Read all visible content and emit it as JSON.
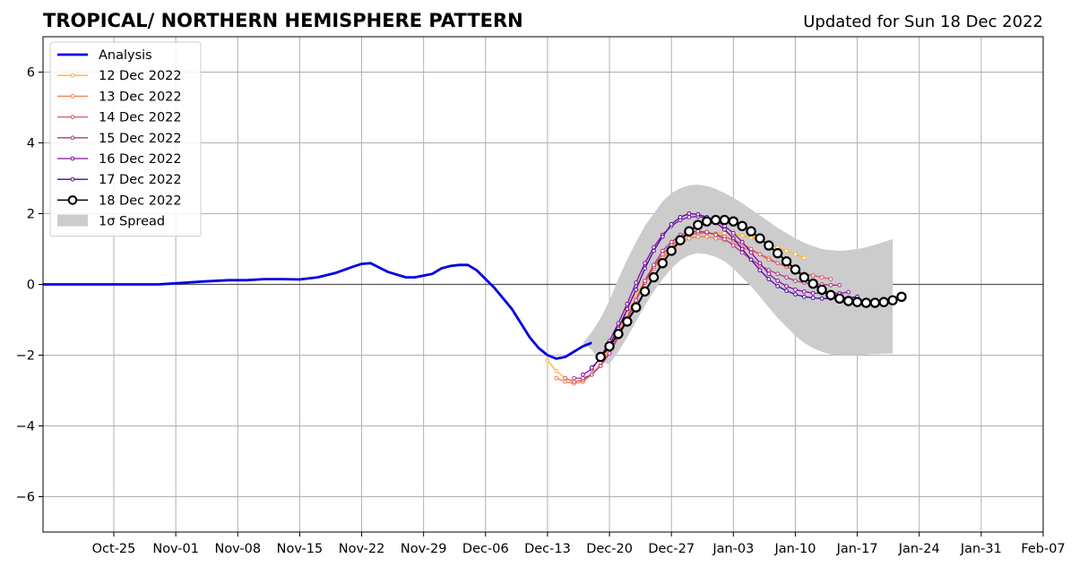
{
  "chart_data": {
    "type": "line",
    "title": "TROPICAL/ NORTHERN HEMISPHERE PATTERN",
    "subtitle": "Updated for Sun 18 Dec 2022",
    "xlabel": "",
    "ylabel": "",
    "x_range": [
      "2022-10-17",
      "2023-02-07"
    ],
    "ylim": [
      -7,
      7
    ],
    "y_ticks": [
      -6,
      -4,
      -2,
      0,
      2,
      4,
      6
    ],
    "y_tick_labels": [
      "−6",
      "−4",
      "−2",
      "0",
      "2",
      "4",
      "6"
    ],
    "x_ticks": [
      "2022-10-25",
      "2022-11-01",
      "2022-11-08",
      "2022-11-15",
      "2022-11-22",
      "2022-11-29",
      "2022-12-06",
      "2022-12-13",
      "2022-12-20",
      "2022-12-27",
      "2023-01-03",
      "2023-01-10",
      "2023-01-17",
      "2023-01-24",
      "2023-01-31",
      "2023-02-07"
    ],
    "x_tick_labels": [
      "Oct-25",
      "Nov-01",
      "Nov-08",
      "Nov-15",
      "Nov-22",
      "Nov-29",
      "Dec-06",
      "Dec-13",
      "Dec-20",
      "Dec-27",
      "Jan-03",
      "Jan-10",
      "Jan-17",
      "Jan-24",
      "Jan-31",
      "Feb-07"
    ],
    "grid": true,
    "zero_line": true,
    "legend_position": "top-left",
    "analysis": {
      "name": "Analysis",
      "color": "#0000e0",
      "dates": [
        "2022-10-17",
        "2022-10-22",
        "2022-10-27",
        "2022-10-30",
        "2022-11-01",
        "2022-11-04",
        "2022-11-07",
        "2022-11-09",
        "2022-11-11",
        "2022-11-13",
        "2022-11-15",
        "2022-11-17",
        "2022-11-19",
        "2022-11-21",
        "2022-11-22",
        "2022-11-23",
        "2022-11-25",
        "2022-11-27",
        "2022-11-28",
        "2022-11-30",
        "2022-12-01",
        "2022-12-02",
        "2022-12-03",
        "2022-12-04",
        "2022-12-05",
        "2022-12-07",
        "2022-12-09",
        "2022-12-11",
        "2022-12-12",
        "2022-12-13",
        "2022-12-14",
        "2022-12-15",
        "2022-12-16",
        "2022-12-17",
        "2022-12-18"
      ],
      "values": [
        0.0,
        0.0,
        0.0,
        0.0,
        0.03,
        0.08,
        0.12,
        0.12,
        0.15,
        0.15,
        0.14,
        0.2,
        0.32,
        0.5,
        0.58,
        0.6,
        0.35,
        0.2,
        0.2,
        0.3,
        0.45,
        0.52,
        0.55,
        0.55,
        0.4,
        -0.1,
        -0.7,
        -1.5,
        -1.8,
        -2.0,
        -2.1,
        -2.05,
        -1.9,
        -1.75,
        -1.65
      ]
    },
    "series": [
      {
        "name": "12 Dec 2022",
        "color": "#fdb32f",
        "start": "2022-12-13",
        "values": [
          -2.15,
          -2.45,
          -2.65,
          -2.75,
          -2.7,
          -2.55,
          -2.2,
          -1.8,
          -1.35,
          -0.85,
          -0.35,
          0.15,
          0.5,
          0.8,
          1.05,
          1.25,
          1.4,
          1.45,
          1.45,
          1.45,
          1.45,
          1.42,
          1.38,
          1.32,
          1.25,
          1.15,
          1.05,
          0.95,
          0.85,
          0.75
        ]
      },
      {
        "name": "13 Dec 2022",
        "color": "#f07f45",
        "start": "2022-12-14",
        "values": [
          -2.65,
          -2.75,
          -2.8,
          -2.75,
          -2.55,
          -2.3,
          -1.9,
          -1.45,
          -0.9,
          -0.4,
          0.05,
          0.45,
          0.75,
          0.98,
          1.15,
          1.3,
          1.35,
          1.35,
          1.3,
          1.25,
          1.15,
          1.05,
          0.95,
          0.85,
          0.75,
          0.6,
          0.5,
          0.4,
          0.3,
          0.25,
          0.2
        ]
      },
      {
        "name": "14 Dec 2022",
        "color": "#d8576b",
        "start": "2022-12-15",
        "values": [
          -2.65,
          -2.75,
          -2.7,
          -2.55,
          -2.3,
          -1.9,
          -1.45,
          -0.95,
          -0.45,
          0.05,
          0.5,
          0.85,
          1.1,
          1.3,
          1.4,
          1.45,
          1.45,
          1.42,
          1.35,
          1.25,
          1.15,
          1.0,
          0.85,
          0.7,
          0.6,
          0.5,
          0.4,
          0.3,
          0.25,
          0.2,
          0.15
        ]
      },
      {
        "name": "15 Dec 2022",
        "color": "#b5338a",
        "start": "2022-12-16",
        "values": [
          -2.65,
          -2.65,
          -2.55,
          -2.3,
          -1.95,
          -1.5,
          -1.0,
          -0.45,
          0.1,
          0.55,
          0.95,
          1.2,
          1.4,
          1.48,
          1.5,
          1.48,
          1.4,
          1.28,
          1.1,
          0.9,
          0.7,
          0.55,
          0.4,
          0.3,
          0.2,
          0.1,
          0.05,
          0.0,
          0.0,
          -0.02,
          -0.02
        ]
      },
      {
        "name": "16 Dec 2022",
        "color": "#8b0aa5",
        "start": "2022-12-17",
        "values": [
          -2.55,
          -2.4,
          -2.05,
          -1.6,
          -1.1,
          -0.55,
          0.05,
          0.6,
          1.05,
          1.4,
          1.65,
          1.82,
          1.9,
          1.92,
          1.88,
          1.8,
          1.65,
          1.45,
          1.2,
          0.9,
          0.6,
          0.3,
          0.1,
          -0.05,
          -0.15,
          -0.2,
          -0.25,
          -0.25,
          -0.25,
          -0.25,
          -0.22
        ]
      },
      {
        "name": "17 Dec 2022",
        "color": "#5302a3",
        "start": "2022-12-18",
        "values": [
          -2.35,
          -2.1,
          -1.7,
          -1.25,
          -0.7,
          -0.15,
          0.45,
          0.95,
          1.35,
          1.7,
          1.9,
          2.0,
          1.98,
          1.9,
          1.75,
          1.55,
          1.3,
          1.0,
          0.7,
          0.4,
          0.15,
          -0.05,
          -0.18,
          -0.28,
          -0.35,
          -0.38,
          -0.4,
          -0.4,
          -0.4,
          -0.38,
          -0.35
        ]
      },
      {
        "name": "18 Dec 2022",
        "color": "#000000",
        "start": "2022-12-19",
        "values": [
          -2.05,
          -1.75,
          -1.4,
          -1.05,
          -0.65,
          -0.2,
          0.2,
          0.6,
          0.95,
          1.25,
          1.5,
          1.68,
          1.78,
          1.82,
          1.82,
          1.78,
          1.65,
          1.5,
          1.3,
          1.1,
          0.88,
          0.65,
          0.42,
          0.2,
          0.02,
          -0.15,
          -0.3,
          -0.4,
          -0.47,
          -0.5,
          -0.52,
          -0.52,
          -0.5,
          -0.45,
          -0.35
        ]
      }
    ],
    "spread": {
      "name": "1σ Spread",
      "color": "#cccccc",
      "start": "2022-12-17",
      "upper": [
        -1.65,
        -1.35,
        -0.95,
        -0.45,
        0.15,
        0.7,
        1.2,
        1.65,
        2.0,
        2.35,
        2.58,
        2.72,
        2.8,
        2.82,
        2.78,
        2.7,
        2.58,
        2.45,
        2.3,
        2.12,
        1.95,
        1.78,
        1.6,
        1.45,
        1.3,
        1.18,
        1.08,
        1.0,
        0.97,
        0.95,
        0.97,
        1.0,
        1.05,
        1.12,
        1.2,
        1.28
      ],
      "lower": [
        -1.65,
        -1.85,
        -2.2,
        -2.25,
        -1.9,
        -1.5,
        -1.05,
        -0.6,
        -0.2,
        0.15,
        0.45,
        0.68,
        0.82,
        0.88,
        0.85,
        0.78,
        0.65,
        0.45,
        0.2,
        -0.05,
        -0.35,
        -0.65,
        -0.95,
        -1.2,
        -1.45,
        -1.65,
        -1.8,
        -1.9,
        -1.98,
        -2.0,
        -2.0,
        -2.0,
        -1.98,
        -1.97,
        -1.96,
        -1.95
      ]
    }
  }
}
